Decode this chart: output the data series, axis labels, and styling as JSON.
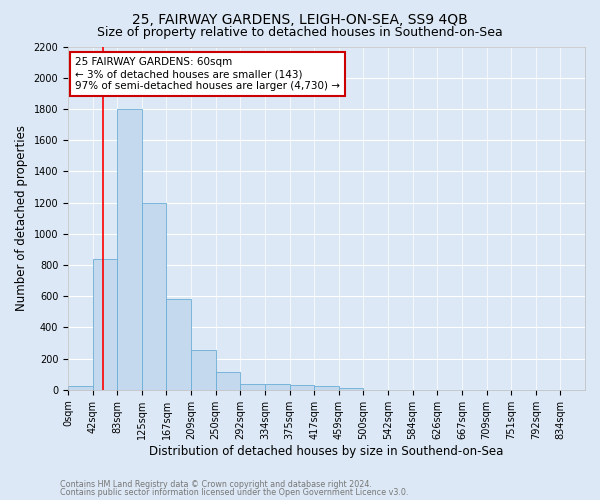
{
  "title": "25, FAIRWAY GARDENS, LEIGH-ON-SEA, SS9 4QB",
  "subtitle": "Size of property relative to detached houses in Southend-on-Sea",
  "xlabel": "Distribution of detached houses by size in Southend-on-Sea",
  "ylabel": "Number of detached properties",
  "bar_labels": [
    "0sqm",
    "42sqm",
    "83sqm",
    "125sqm",
    "167sqm",
    "209sqm",
    "250sqm",
    "292sqm",
    "334sqm",
    "375sqm",
    "417sqm",
    "459sqm",
    "500sqm",
    "542sqm",
    "584sqm",
    "626sqm",
    "667sqm",
    "709sqm",
    "751sqm",
    "792sqm",
    "834sqm"
  ],
  "bar_values": [
    25,
    840,
    1800,
    1200,
    580,
    255,
    115,
    40,
    40,
    28,
    22,
    15,
    0,
    0,
    0,
    0,
    0,
    0,
    0,
    0,
    0
  ],
  "bar_color": "#c5d9ee",
  "bar_edge_color": "#6aaed6",
  "annotation_text": "25 FAIRWAY GARDENS: 60sqm\n← 3% of detached houses are smaller (143)\n97% of semi-detached houses are larger (4,730) →",
  "annotation_box_color": "#ffffff",
  "annotation_box_edge": "#cc0000",
  "redline_x": 1.43,
  "ylim": [
    0,
    2200
  ],
  "yticks": [
    0,
    200,
    400,
    600,
    800,
    1000,
    1200,
    1400,
    1600,
    1800,
    2000,
    2200
  ],
  "footer1": "Contains HM Land Registry data © Crown copyright and database right 2024.",
  "footer2": "Contains public sector information licensed under the Open Government Licence v3.0.",
  "fig_bg": "#dce8f5",
  "plot_bg": "#dce8f5",
  "title_fontsize": 10,
  "subtitle_fontsize": 9,
  "tick_fontsize": 7,
  "ylabel_fontsize": 8.5,
  "xlabel_fontsize": 8.5,
  "footer_fontsize": 5.8,
  "annotation_fontsize": 7.5
}
